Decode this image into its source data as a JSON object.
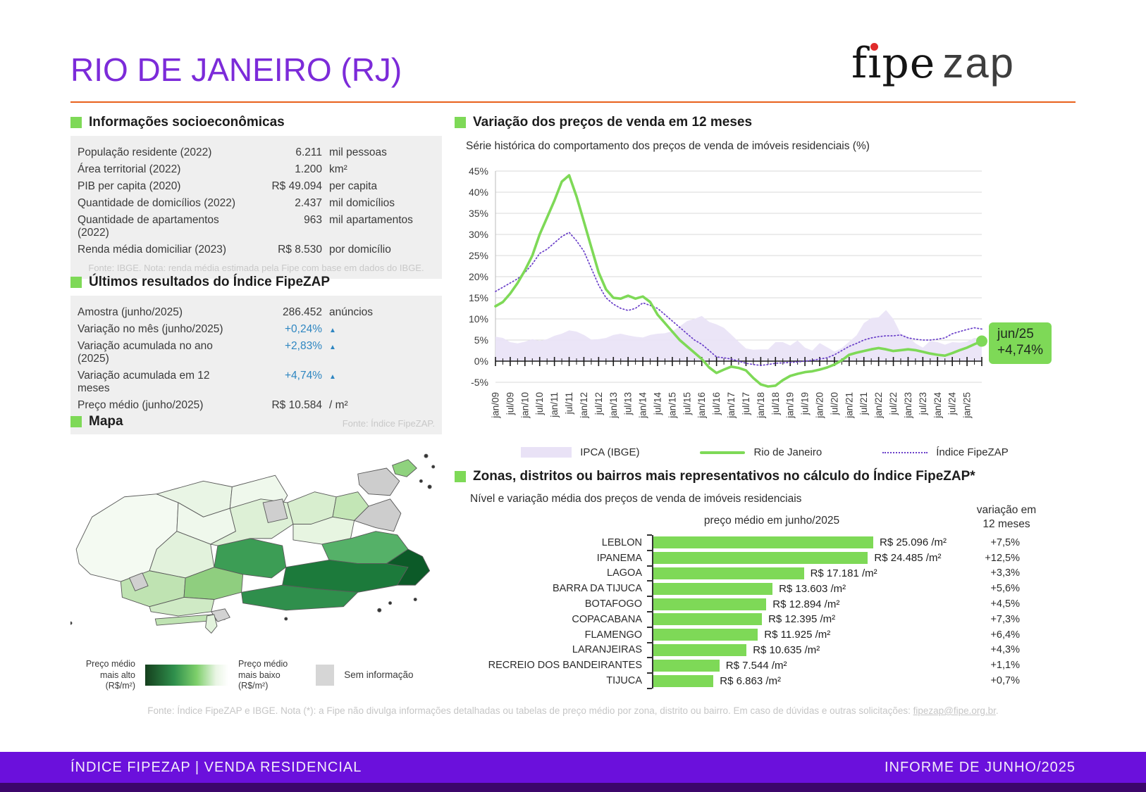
{
  "page": {
    "title": "RIO DE JANEIRO (RJ)"
  },
  "logo": {
    "fipe": "fıpe",
    "zap": "zap"
  },
  "colors": {
    "accent_green": "#7ED957",
    "title_purple": "#7C2BD9",
    "footer_purple": "#6B10DC",
    "footer_dark": "#3C066B",
    "rule_orange": "#E8611C",
    "value_blue": "#2E86C1",
    "ipca_fill": "#E9E2F6",
    "fipezap_line": "#6A3FC9",
    "rio_line": "#7ED957",
    "map_high": "#153F1D",
    "map_low": "#FFFFFF",
    "no_info_gray": "#D6D6D6"
  },
  "socio": {
    "title": "Informações socioeconômicas",
    "rows": [
      {
        "label": "População residente (2022)",
        "value": "6.211",
        "unit": "mil pessoas",
        "blue": false
      },
      {
        "label": "Área territorial (2022)",
        "value": "1.200",
        "unit": "km²",
        "blue": false
      },
      {
        "label": "PIB per capita (2020)",
        "value": "R$ 49.094",
        "unit": "per capita",
        "blue": false
      },
      {
        "label": "Quantidade de domicílios (2022)",
        "value": "2.437",
        "unit": "mil domicílios",
        "blue": false
      },
      {
        "label": "Quantidade de apartamentos (2022)",
        "value": "963",
        "unit": "mil apartamentos",
        "blue": false
      },
      {
        "label": "Renda média domiciliar (2023)",
        "value": "R$ 8.530",
        "unit": "por domicílio",
        "blue": false
      }
    ],
    "footnote": "Fonte: IBGE. Nota: renda média estimada pela Fipe com base em dados do IBGE."
  },
  "indice": {
    "title": "Últimos resultados do Índice FipeZAP",
    "rows": [
      {
        "label": "Amostra (junho/2025)",
        "value": "286.452",
        "unit": "anúncios",
        "blue": false
      },
      {
        "label": "Variação no mês (junho/2025)",
        "value": "+0,24%",
        "unit": "▲",
        "blue": true
      },
      {
        "label": "Variação acumulada no ano (2025)",
        "value": "+2,83%",
        "unit": "▲",
        "blue": true
      },
      {
        "label": "Variação acumulada em 12 meses",
        "value": "+4,74%",
        "unit": "▲",
        "blue": true
      },
      {
        "label": "Preço médio (junho/2025)",
        "value": "R$ 10.584",
        "unit": "/ m²",
        "blue": false
      }
    ],
    "footnote": "Fonte: Índice FipeZAP."
  },
  "map": {
    "title": "Mapa",
    "legend": {
      "high1": "Preço médio",
      "high2": "mais alto",
      "high3": "(R$/m²)",
      "low1": "Preço médio",
      "low2": "mais baixo",
      "low3": "(R$/m²)",
      "none": "Sem informação"
    }
  },
  "chart_data": [
    {
      "type": "line",
      "title": "Variação dos preços de venda em 12 meses",
      "subtitle": "Série histórica do comportamento dos preços de venda de imóveis residenciais (%)",
      "ylim": [
        -5,
        45
      ],
      "yticks": [
        45,
        40,
        35,
        30,
        25,
        20,
        15,
        10,
        5,
        0,
        -5
      ],
      "ytick_suffix": "%",
      "grid": true,
      "legend_position": "bottom",
      "x_labels": [
        "jan/09",
        "jul/09",
        "jan/10",
        "jul/10",
        "jan/11",
        "jul/11",
        "jan/12",
        "jul/12",
        "jan/13",
        "jul/13",
        "jan/14",
        "jul/14",
        "jan/15",
        "jul/15",
        "jan/16",
        "jul/16",
        "jan/17",
        "jul/17",
        "jan/18",
        "jul/18",
        "jan/19",
        "jul/19",
        "jan/20",
        "jul/20",
        "jan/21",
        "jul/21",
        "jan/22",
        "jul/22",
        "jan/23",
        "jul/23",
        "jan/24",
        "jul/24",
        "jan/25"
      ],
      "annotation": {
        "label": "jun/25",
        "value": "+4,74%"
      },
      "series": [
        {
          "name": "IPCA (IBGE)",
          "style": "area",
          "color": "#E9E2F6",
          "values": [
            5.8,
            5.5,
            4.5,
            4.2,
            4.6,
            5.2,
            4.8,
            5.2,
            6,
            6.5,
            7.3,
            7,
            6.2,
            5.1,
            5.2,
            5.5,
            6.2,
            6.5,
            6.1,
            5.8,
            5.6,
            6.2,
            6.5,
            6.6,
            7.1,
            8.2,
            9.5,
            10,
            10.7,
            9.3,
            8.7,
            7.9,
            6.3,
            4.6,
            3,
            2.7,
            2.8,
            2.8,
            4.5,
            4.5,
            3.7,
            4.9,
            3.2,
            2.5,
            4.3,
            3.3,
            2.3,
            3.1,
            4.6,
            6.1,
            9,
            10.2,
            10.4,
            12.1,
            10,
            6.5,
            5.8,
            4.2,
            3.2,
            4.8,
            4.5,
            3.9,
            4.5,
            4.4,
            4.6,
            5.5,
            5.35
          ]
        },
        {
          "name": "Rio de Janeiro",
          "style": "line",
          "color": "#7ED957",
          "values": [
            13,
            14,
            16,
            18.5,
            21.5,
            25,
            30,
            34,
            38,
            42.5,
            44,
            39,
            33,
            27,
            21,
            17,
            15,
            14.8,
            15.5,
            14.8,
            15.3,
            14,
            11,
            9,
            7,
            5,
            3.5,
            2,
            0.5,
            -1.5,
            -2.8,
            -2,
            -1.3,
            -1.6,
            -2.2,
            -4,
            -5.5,
            -6,
            -5.8,
            -4.5,
            -3.5,
            -3,
            -2.6,
            -2.4,
            -2,
            -1.5,
            -0.8,
            0.2,
            1.5,
            2,
            2.4,
            2.8,
            3.1,
            2.8,
            2.4,
            2.6,
            2.8,
            2.6,
            2.2,
            1.8,
            1.5,
            1.3,
            1.9,
            2.6,
            3.2,
            4,
            4.74
          ]
        },
        {
          "name": "Índice FipeZAP",
          "style": "dotted",
          "color": "#6A3FC9",
          "values": [
            16.5,
            17.5,
            18.5,
            19.5,
            21,
            23,
            25.5,
            26.5,
            28,
            29.5,
            30.5,
            28.5,
            26,
            22,
            18,
            15,
            13.5,
            12.5,
            12,
            12.5,
            13.8,
            13.2,
            12.5,
            11,
            9.5,
            8,
            6.5,
            5,
            4,
            2.5,
            1,
            0.8,
            0.5,
            0,
            -0.5,
            -0.8,
            -1,
            -0.8,
            -0.5,
            -0.4,
            -0.3,
            -0.2,
            0,
            0.2,
            0.5,
            0.8,
            1.5,
            2.5,
            3.5,
            4.2,
            5,
            5.5,
            5.8,
            6,
            6,
            6.2,
            5.5,
            5.2,
            5,
            5,
            5.2,
            5.5,
            6.5,
            7,
            7.5,
            7.9,
            7.6
          ]
        }
      ]
    },
    {
      "type": "bar",
      "title": "Zonas, distritos ou bairros mais representativos no cálculo do Índice FipeZAP*",
      "subtitle": "Nível e variação média dos preços de venda de imóveis residenciais",
      "col_price": "preço médio em junho/2025",
      "col_var_line1": "variação em",
      "col_var_line2": "12 meses",
      "max_value": 25096,
      "rows": [
        {
          "name": "LEBLON",
          "price": "R$ 25.096 /m²",
          "value": 25096,
          "variation": "+7,5%"
        },
        {
          "name": "IPANEMA",
          "price": "R$ 24.485 /m²",
          "value": 24485,
          "variation": "+12,5%"
        },
        {
          "name": "LAGOA",
          "price": "R$ 17.181 /m²",
          "value": 17181,
          "variation": "+3,3%"
        },
        {
          "name": "BARRA DA TIJUCA",
          "price": "R$ 13.603 /m²",
          "value": 13603,
          "variation": "+5,6%"
        },
        {
          "name": "BOTAFOGO",
          "price": "R$ 12.894 /m²",
          "value": 12894,
          "variation": "+4,5%"
        },
        {
          "name": "COPACABANA",
          "price": "R$ 12.395 /m²",
          "value": 12395,
          "variation": "+7,3%"
        },
        {
          "name": "FLAMENGO",
          "price": "R$ 11.925 /m²",
          "value": 11925,
          "variation": "+6,4%"
        },
        {
          "name": "LARANJEIRAS",
          "price": "R$ 10.635 /m²",
          "value": 10635,
          "variation": "+4,3%"
        },
        {
          "name": "RECREIO DOS BANDEIRANTES",
          "price": "R$ 7.544 /m²",
          "value": 7544,
          "variation": "+1,1%"
        },
        {
          "name": "TIJUCA",
          "price": "R$ 6.863 /m²",
          "value": 6863,
          "variation": "+0,7%"
        }
      ]
    }
  ],
  "footer": {
    "note": "Fonte: Índice FipeZAP e IBGE. Nota (*): a Fipe não divulga informações detalhadas ou tabelas de preço médio por zona, distrito ou bairro. Em caso de dúvidas e outras solicitações: ",
    "email": "fipezap@fipe.org.br",
    "note_end": ".",
    "bar_left": "ÍNDICE FIPEZAP | VENDA RESIDENCIAL",
    "bar_right": "INFORME DE JUNHO/2025"
  }
}
